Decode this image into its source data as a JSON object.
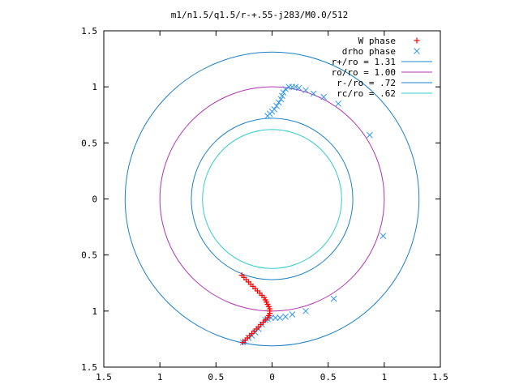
{
  "chart_data": {
    "type": "scatter",
    "title": "m1/n1.5/q1.5/r-+.55-j283/M0.0/512",
    "xlabel": "",
    "ylabel": "",
    "xlim": [
      -1.5,
      1.5
    ],
    "ylim": [
      -1.5,
      1.5
    ],
    "x_ticks": [
      -1.5,
      -1,
      -0.5,
      0,
      0.5,
      1,
      1.5
    ],
    "x_tick_labels": [
      "1.5",
      "1",
      "0.5",
      "0",
      "0.5",
      "1",
      "1.5"
    ],
    "y_ticks": [
      1.5,
      1,
      0.5,
      0,
      -0.5,
      -1,
      -1.5
    ],
    "y_tick_labels": [
      "1.5",
      "1",
      "0.5",
      "0",
      "0.5",
      "1",
      "1.5"
    ],
    "grid": false,
    "legend_position": "top-right",
    "series": [
      {
        "name": "W phase",
        "kind": "points",
        "marker": "plus",
        "color": "#ff0000",
        "points": [
          [
            -0.27,
            -0.68
          ],
          [
            -0.25,
            -0.7
          ],
          [
            -0.23,
            -0.72
          ],
          [
            -0.21,
            -0.74
          ],
          [
            -0.19,
            -0.76
          ],
          [
            -0.17,
            -0.78
          ],
          [
            -0.15,
            -0.8
          ],
          [
            -0.13,
            -0.82
          ],
          [
            -0.11,
            -0.84
          ],
          [
            -0.09,
            -0.86
          ],
          [
            -0.07,
            -0.88
          ],
          [
            -0.06,
            -0.9
          ],
          [
            -0.05,
            -0.92
          ],
          [
            -0.04,
            -0.94
          ],
          [
            -0.03,
            -0.96
          ],
          [
            -0.02,
            -0.98
          ],
          [
            -0.02,
            -1.0
          ],
          [
            -0.02,
            -1.02
          ],
          [
            -0.03,
            -1.04
          ],
          [
            -0.04,
            -1.06
          ],
          [
            -0.06,
            -1.08
          ],
          [
            -0.08,
            -1.1
          ],
          [
            -0.1,
            -1.12
          ],
          [
            -0.12,
            -1.14
          ],
          [
            -0.14,
            -1.16
          ],
          [
            -0.16,
            -1.18
          ],
          [
            -0.18,
            -1.2
          ],
          [
            -0.2,
            -1.22
          ],
          [
            -0.22,
            -1.24
          ],
          [
            -0.24,
            -1.26
          ],
          [
            -0.26,
            -1.28
          ]
        ]
      },
      {
        "name": "drho phase",
        "kind": "points",
        "marker": "cross",
        "color": "#3399ee",
        "points": [
          [
            -0.04,
            0.74
          ],
          [
            -0.02,
            0.76
          ],
          [
            0.0,
            0.78
          ],
          [
            0.02,
            0.8
          ],
          [
            0.04,
            0.83
          ],
          [
            0.06,
            0.86
          ],
          [
            0.08,
            0.89
          ],
          [
            0.09,
            0.92
          ],
          [
            0.1,
            0.95
          ],
          [
            0.12,
            0.98
          ],
          [
            0.15,
            1.0
          ],
          [
            0.18,
            1.0
          ],
          [
            0.21,
            1.0
          ],
          [
            0.24,
            0.99
          ],
          [
            0.3,
            0.97
          ],
          [
            0.37,
            0.94
          ],
          [
            0.46,
            0.91
          ],
          [
            0.59,
            0.85
          ],
          [
            0.87,
            0.57
          ],
          [
            0.99,
            -0.33
          ],
          [
            0.55,
            -0.89
          ],
          [
            0.3,
            -1.0
          ],
          [
            0.18,
            -1.03
          ],
          [
            0.12,
            -1.05
          ],
          [
            0.07,
            -1.06
          ],
          [
            0.03,
            -1.06
          ],
          [
            -0.01,
            -1.06
          ],
          [
            -0.04,
            -1.07
          ],
          [
            -0.06,
            -1.08
          ],
          [
            -0.09,
            -1.12
          ],
          [
            -0.12,
            -1.16
          ],
          [
            -0.15,
            -1.19
          ],
          [
            -0.18,
            -1.22
          ],
          [
            -0.21,
            -1.24
          ],
          [
            -0.24,
            -1.27
          ],
          [
            -0.26,
            -1.28
          ]
        ]
      },
      {
        "name": "r+/ro = 1.31",
        "kind": "circle",
        "radius": 1.31,
        "color": "#1a80c8"
      },
      {
        "name": "ro/ro = 1.00",
        "kind": "circle",
        "radius": 1.0,
        "color": "#b233b2"
      },
      {
        "name": "r-/ro = .72",
        "kind": "circle",
        "radius": 0.72,
        "color": "#1a80c8"
      },
      {
        "name": "rc/ro = .62",
        "kind": "circle",
        "radius": 0.62,
        "color": "#33cccc"
      }
    ]
  }
}
